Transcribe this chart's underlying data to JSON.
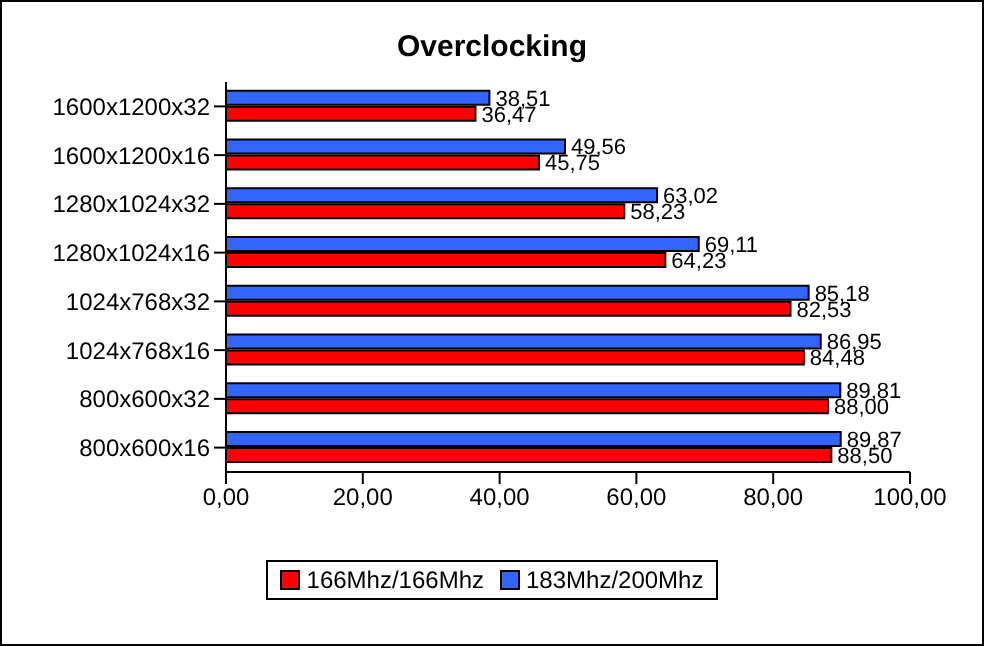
{
  "chart_data": {
    "type": "bar",
    "orientation": "horizontal",
    "title": "Overclocking",
    "categories": [
      "1600x1200x32",
      "1600x1200x16",
      "1280x1024x32",
      "1280x1024x16",
      "1024x768x32",
      "1024x768x16",
      "800x600x32",
      "800x600x16"
    ],
    "series": [
      {
        "name": "166Mhz/166Mhz",
        "color": "#ff0000",
        "values": [
          36.47,
          45.75,
          58.23,
          64.23,
          82.53,
          84.48,
          88.0,
          88.5
        ],
        "value_labels": [
          "36,47",
          "45,75",
          "58,23",
          "64,23",
          "82,53",
          "84,48",
          "88,00",
          "88,50"
        ]
      },
      {
        "name": "183Mhz/200Mhz",
        "color": "#3366ff",
        "values": [
          38.51,
          49.56,
          63.02,
          69.11,
          85.18,
          86.95,
          89.81,
          89.87
        ],
        "value_labels": [
          "38,51",
          "49,56",
          "63,02",
          "69,11",
          "85,18",
          "86,95",
          "89,81",
          "89,87"
        ]
      }
    ],
    "xlim": [
      0,
      100
    ],
    "xticks": [
      {
        "value": 0,
        "label": "0,00"
      },
      {
        "value": 20,
        "label": "20,00"
      },
      {
        "value": 40,
        "label": "40,00"
      },
      {
        "value": 60,
        "label": "60,00"
      },
      {
        "value": 80,
        "label": "80,00"
      },
      {
        "value": 100,
        "label": "100,00"
      }
    ],
    "legend": "bottom"
  }
}
